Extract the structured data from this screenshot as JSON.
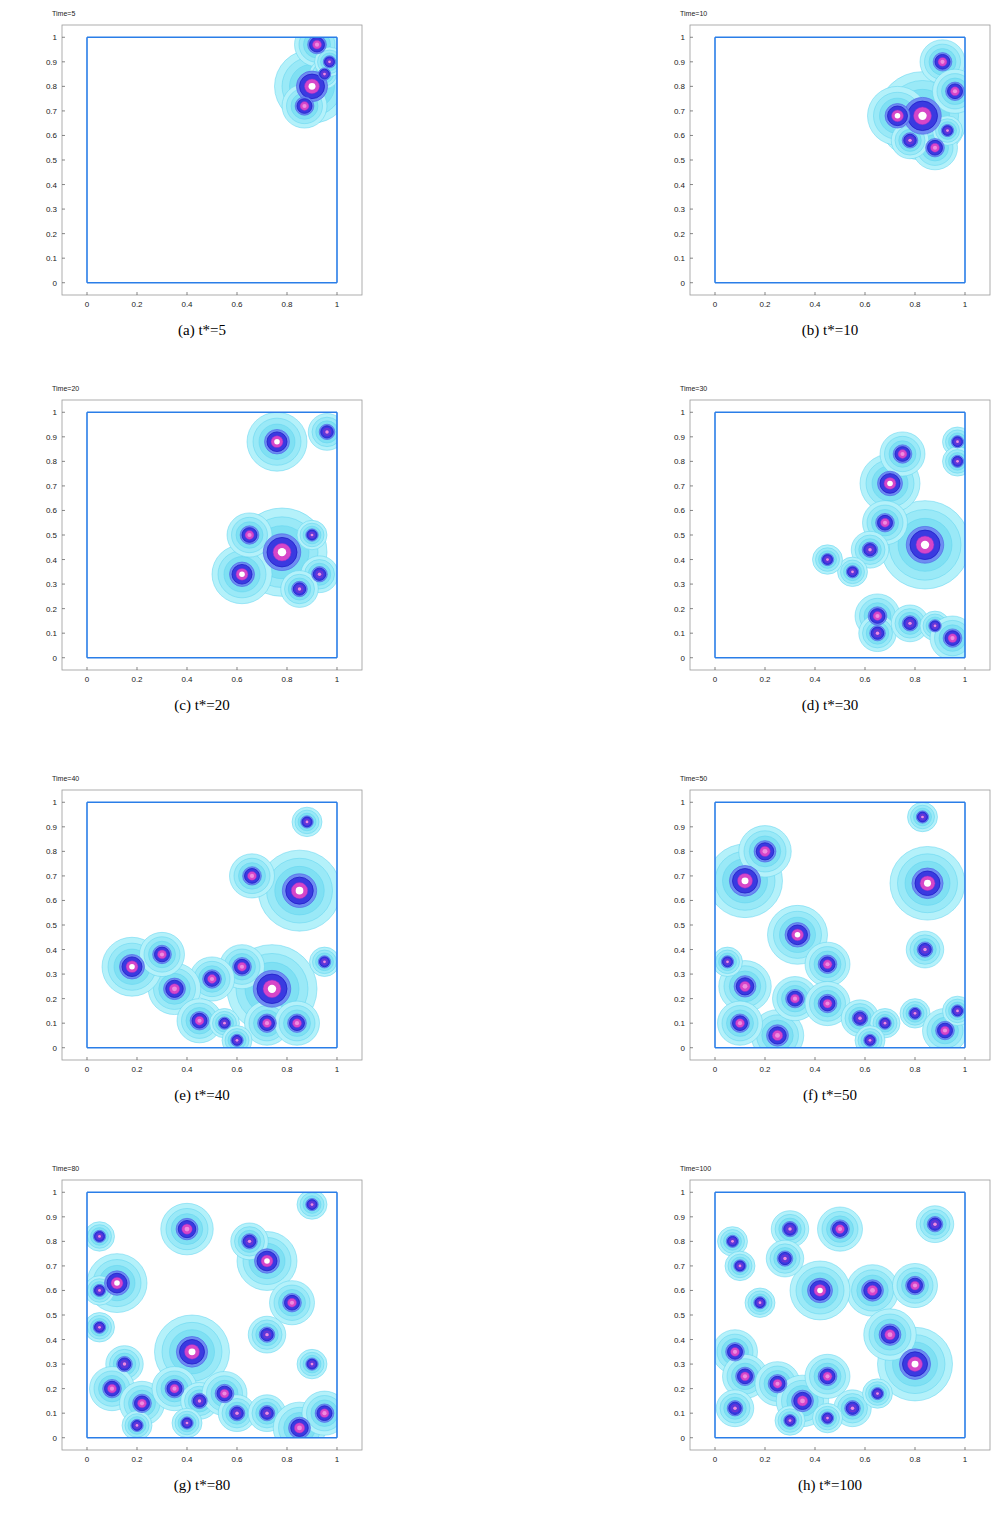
{
  "chart_data": [
    {
      "type": "contour",
      "title": "Time=5",
      "caption": "(a) t*=5",
      "xlim": [
        -0.1,
        1.1
      ],
      "ylim": [
        -0.05,
        1.05
      ],
      "xticks": [
        0,
        0.2,
        0.4,
        0.6,
        0.8,
        1
      ],
      "yticks": [
        0,
        0.1,
        0.2,
        0.3,
        0.4,
        0.5,
        0.6,
        0.7,
        0.8,
        0.9,
        1
      ],
      "cavity": [
        0,
        1
      ],
      "vortices": [
        {
          "x": 0.9,
          "y": 0.8,
          "size": 0.05
        },
        {
          "x": 0.92,
          "y": 0.97,
          "size": 0.03
        },
        {
          "x": 0.87,
          "y": 0.72,
          "size": 0.03
        },
        {
          "x": 0.95,
          "y": 0.85,
          "size": 0.02
        },
        {
          "x": 0.97,
          "y": 0.9,
          "size": 0.02
        }
      ]
    },
    {
      "type": "contour",
      "title": "Time=10",
      "caption": "(b) t*=10",
      "xlim": [
        -0.1,
        1.1
      ],
      "ylim": [
        -0.05,
        1.05
      ],
      "xticks": [
        0,
        0.2,
        0.4,
        0.6,
        0.8,
        1
      ],
      "yticks": [
        0,
        0.1,
        0.2,
        0.3,
        0.4,
        0.5,
        0.6,
        0.7,
        0.8,
        0.9,
        1
      ],
      "cavity": [
        0,
        1
      ],
      "vortices": [
        {
          "x": 0.83,
          "y": 0.68,
          "size": 0.06
        },
        {
          "x": 0.73,
          "y": 0.68,
          "size": 0.04
        },
        {
          "x": 0.88,
          "y": 0.55,
          "size": 0.03
        },
        {
          "x": 0.91,
          "y": 0.9,
          "size": 0.03
        },
        {
          "x": 0.96,
          "y": 0.78,
          "size": 0.03
        },
        {
          "x": 0.78,
          "y": 0.58,
          "size": 0.025
        },
        {
          "x": 0.93,
          "y": 0.62,
          "size": 0.02
        }
      ]
    },
    {
      "type": "contour",
      "title": "Time=20",
      "caption": "(c) t*=20",
      "xlim": [
        -0.1,
        1.1
      ],
      "ylim": [
        -0.05,
        1.05
      ],
      "xticks": [
        0,
        0.2,
        0.4,
        0.6,
        0.8,
        1
      ],
      "yticks": [
        0,
        0.1,
        0.2,
        0.3,
        0.4,
        0.5,
        0.6,
        0.7,
        0.8,
        0.9,
        1
      ],
      "cavity": [
        0,
        1
      ],
      "vortices": [
        {
          "x": 0.78,
          "y": 0.43,
          "size": 0.06
        },
        {
          "x": 0.62,
          "y": 0.34,
          "size": 0.04
        },
        {
          "x": 0.76,
          "y": 0.88,
          "size": 0.04
        },
        {
          "x": 0.96,
          "y": 0.92,
          "size": 0.025
        },
        {
          "x": 0.93,
          "y": 0.34,
          "size": 0.025
        },
        {
          "x": 0.85,
          "y": 0.28,
          "size": 0.025
        },
        {
          "x": 0.65,
          "y": 0.5,
          "size": 0.03
        },
        {
          "x": 0.9,
          "y": 0.5,
          "size": 0.02
        }
      ]
    },
    {
      "type": "contour",
      "title": "Time=30",
      "caption": "(d) t*=30",
      "xlim": [
        -0.1,
        1.1
      ],
      "ylim": [
        -0.05,
        1.05
      ],
      "xticks": [
        0,
        0.2,
        0.4,
        0.6,
        0.8,
        1
      ],
      "yticks": [
        0,
        0.1,
        0.2,
        0.3,
        0.4,
        0.5,
        0.6,
        0.7,
        0.8,
        0.9,
        1
      ],
      "cavity": [
        0,
        1
      ],
      "vortices": [
        {
          "x": 0.84,
          "y": 0.46,
          "size": 0.06
        },
        {
          "x": 0.7,
          "y": 0.71,
          "size": 0.04
        },
        {
          "x": 0.75,
          "y": 0.83,
          "size": 0.03
        },
        {
          "x": 0.68,
          "y": 0.55,
          "size": 0.03
        },
        {
          "x": 0.62,
          "y": 0.44,
          "size": 0.025
        },
        {
          "x": 0.97,
          "y": 0.88,
          "size": 0.02
        },
        {
          "x": 0.97,
          "y": 0.8,
          "size": 0.02
        },
        {
          "x": 0.65,
          "y": 0.17,
          "size": 0.03
        },
        {
          "x": 0.65,
          "y": 0.1,
          "size": 0.025
        },
        {
          "x": 0.78,
          "y": 0.14,
          "size": 0.025
        },
        {
          "x": 0.88,
          "y": 0.13,
          "size": 0.02
        },
        {
          "x": 0.95,
          "y": 0.08,
          "size": 0.03
        },
        {
          "x": 0.55,
          "y": 0.35,
          "size": 0.02
        },
        {
          "x": 0.45,
          "y": 0.4,
          "size": 0.02
        }
      ]
    },
    {
      "type": "contour",
      "title": "Time=40",
      "caption": "(e) t*=40",
      "xlim": [
        -0.1,
        1.1
      ],
      "ylim": [
        -0.05,
        1.05
      ],
      "xticks": [
        0,
        0.2,
        0.4,
        0.6,
        0.8,
        1
      ],
      "yticks": [
        0,
        0.1,
        0.2,
        0.3,
        0.4,
        0.5,
        0.6,
        0.7,
        0.8,
        0.9,
        1
      ],
      "cavity": [
        0,
        1
      ],
      "vortices": [
        {
          "x": 0.85,
          "y": 0.64,
          "size": 0.055
        },
        {
          "x": 0.66,
          "y": 0.7,
          "size": 0.03
        },
        {
          "x": 0.88,
          "y": 0.92,
          "size": 0.02
        },
        {
          "x": 0.74,
          "y": 0.24,
          "size": 0.06
        },
        {
          "x": 0.62,
          "y": 0.33,
          "size": 0.03
        },
        {
          "x": 0.5,
          "y": 0.28,
          "size": 0.03
        },
        {
          "x": 0.35,
          "y": 0.24,
          "size": 0.035
        },
        {
          "x": 0.18,
          "y": 0.33,
          "size": 0.04
        },
        {
          "x": 0.3,
          "y": 0.38,
          "size": 0.03
        },
        {
          "x": 0.45,
          "y": 0.11,
          "size": 0.03
        },
        {
          "x": 0.72,
          "y": 0.1,
          "size": 0.03
        },
        {
          "x": 0.84,
          "y": 0.1,
          "size": 0.03
        },
        {
          "x": 0.55,
          "y": 0.1,
          "size": 0.02
        },
        {
          "x": 0.6,
          "y": 0.03,
          "size": 0.02
        },
        {
          "x": 0.95,
          "y": 0.35,
          "size": 0.02
        }
      ]
    },
    {
      "type": "contour",
      "title": "Time=50",
      "caption": "(f) t*=50",
      "xlim": [
        -0.1,
        1.1
      ],
      "ylim": [
        -0.05,
        1.05
      ],
      "xticks": [
        0,
        0.2,
        0.4,
        0.6,
        0.8,
        1
      ],
      "yticks": [
        0,
        0.1,
        0.2,
        0.3,
        0.4,
        0.5,
        0.6,
        0.7,
        0.8,
        0.9,
        1
      ],
      "cavity": [
        0,
        1
      ],
      "vortices": [
        {
          "x": 0.12,
          "y": 0.68,
          "size": 0.05
        },
        {
          "x": 0.2,
          "y": 0.8,
          "size": 0.035
        },
        {
          "x": 0.33,
          "y": 0.46,
          "size": 0.04
        },
        {
          "x": 0.45,
          "y": 0.34,
          "size": 0.03
        },
        {
          "x": 0.85,
          "y": 0.67,
          "size": 0.05
        },
        {
          "x": 0.83,
          "y": 0.94,
          "size": 0.02
        },
        {
          "x": 0.84,
          "y": 0.4,
          "size": 0.025
        },
        {
          "x": 0.12,
          "y": 0.25,
          "size": 0.035
        },
        {
          "x": 0.25,
          "y": 0.05,
          "size": 0.035
        },
        {
          "x": 0.32,
          "y": 0.2,
          "size": 0.03
        },
        {
          "x": 0.45,
          "y": 0.18,
          "size": 0.03
        },
        {
          "x": 0.58,
          "y": 0.12,
          "size": 0.025
        },
        {
          "x": 0.68,
          "y": 0.1,
          "size": 0.02
        },
        {
          "x": 0.8,
          "y": 0.14,
          "size": 0.02
        },
        {
          "x": 0.92,
          "y": 0.07,
          "size": 0.03
        },
        {
          "x": 0.05,
          "y": 0.35,
          "size": 0.02
        },
        {
          "x": 0.1,
          "y": 0.1,
          "size": 0.03
        },
        {
          "x": 0.62,
          "y": 0.03,
          "size": 0.02
        },
        {
          "x": 0.97,
          "y": 0.15,
          "size": 0.02
        }
      ]
    },
    {
      "type": "contour",
      "title": "Time=80",
      "caption": "(g) t*=80",
      "xlim": [
        -0.1,
        1.1
      ],
      "ylim": [
        -0.05,
        1.05
      ],
      "xticks": [
        0,
        0.2,
        0.4,
        0.6,
        0.8,
        1
      ],
      "yticks": [
        0,
        0.1,
        0.2,
        0.3,
        0.4,
        0.5,
        0.6,
        0.7,
        0.8,
        0.9,
        1
      ],
      "cavity": [
        0,
        1
      ],
      "vortices": [
        {
          "x": 0.42,
          "y": 0.35,
          "size": 0.05
        },
        {
          "x": 0.12,
          "y": 0.63,
          "size": 0.04
        },
        {
          "x": 0.4,
          "y": 0.85,
          "size": 0.035
        },
        {
          "x": 0.72,
          "y": 0.72,
          "size": 0.04
        },
        {
          "x": 0.65,
          "y": 0.8,
          "size": 0.025
        },
        {
          "x": 0.82,
          "y": 0.55,
          "size": 0.03
        },
        {
          "x": 0.72,
          "y": 0.42,
          "size": 0.025
        },
        {
          "x": 0.05,
          "y": 0.82,
          "size": 0.02
        },
        {
          "x": 0.05,
          "y": 0.45,
          "size": 0.02
        },
        {
          "x": 0.05,
          "y": 0.6,
          "size": 0.02
        },
        {
          "x": 0.15,
          "y": 0.3,
          "size": 0.025
        },
        {
          "x": 0.1,
          "y": 0.2,
          "size": 0.03
        },
        {
          "x": 0.22,
          "y": 0.14,
          "size": 0.03
        },
        {
          "x": 0.35,
          "y": 0.2,
          "size": 0.03
        },
        {
          "x": 0.45,
          "y": 0.15,
          "size": 0.025
        },
        {
          "x": 0.55,
          "y": 0.18,
          "size": 0.03
        },
        {
          "x": 0.6,
          "y": 0.1,
          "size": 0.025
        },
        {
          "x": 0.72,
          "y": 0.1,
          "size": 0.025
        },
        {
          "x": 0.2,
          "y": 0.05,
          "size": 0.02
        },
        {
          "x": 0.85,
          "y": 0.04,
          "size": 0.035
        },
        {
          "x": 0.95,
          "y": 0.1,
          "size": 0.03
        },
        {
          "x": 0.9,
          "y": 0.95,
          "size": 0.02
        },
        {
          "x": 0.4,
          "y": 0.06,
          "size": 0.02
        },
        {
          "x": 0.9,
          "y": 0.3,
          "size": 0.02
        }
      ]
    },
    {
      "type": "contour",
      "title": "Time=100",
      "caption": "(h) t*=100",
      "xlim": [
        -0.1,
        1.1
      ],
      "ylim": [
        -0.05,
        1.05
      ],
      "xticks": [
        0,
        0.2,
        0.4,
        0.6,
        0.8,
        1
      ],
      "yticks": [
        0,
        0.1,
        0.2,
        0.3,
        0.4,
        0.5,
        0.6,
        0.7,
        0.8,
        0.9,
        1
      ],
      "cavity": [
        0,
        1
      ],
      "vortices": [
        {
          "x": 0.8,
          "y": 0.3,
          "size": 0.05
        },
        {
          "x": 0.63,
          "y": 0.6,
          "size": 0.035
        },
        {
          "x": 0.7,
          "y": 0.42,
          "size": 0.035
        },
        {
          "x": 0.8,
          "y": 0.62,
          "size": 0.03
        },
        {
          "x": 0.5,
          "y": 0.85,
          "size": 0.03
        },
        {
          "x": 0.42,
          "y": 0.6,
          "size": 0.04
        },
        {
          "x": 0.3,
          "y": 0.85,
          "size": 0.025
        },
        {
          "x": 0.28,
          "y": 0.73,
          "size": 0.025
        },
        {
          "x": 0.18,
          "y": 0.55,
          "size": 0.02
        },
        {
          "x": 0.88,
          "y": 0.87,
          "size": 0.025
        },
        {
          "x": 0.07,
          "y": 0.8,
          "size": 0.02
        },
        {
          "x": 0.1,
          "y": 0.7,
          "size": 0.02
        },
        {
          "x": 0.08,
          "y": 0.35,
          "size": 0.03
        },
        {
          "x": 0.12,
          "y": 0.25,
          "size": 0.03
        },
        {
          "x": 0.25,
          "y": 0.22,
          "size": 0.03
        },
        {
          "x": 0.35,
          "y": 0.15,
          "size": 0.035
        },
        {
          "x": 0.45,
          "y": 0.25,
          "size": 0.03
        },
        {
          "x": 0.55,
          "y": 0.12,
          "size": 0.025
        },
        {
          "x": 0.3,
          "y": 0.07,
          "size": 0.02
        },
        {
          "x": 0.65,
          "y": 0.18,
          "size": 0.02
        },
        {
          "x": 0.08,
          "y": 0.12,
          "size": 0.025
        },
        {
          "x": 0.45,
          "y": 0.08,
          "size": 0.02
        }
      ]
    }
  ]
}
